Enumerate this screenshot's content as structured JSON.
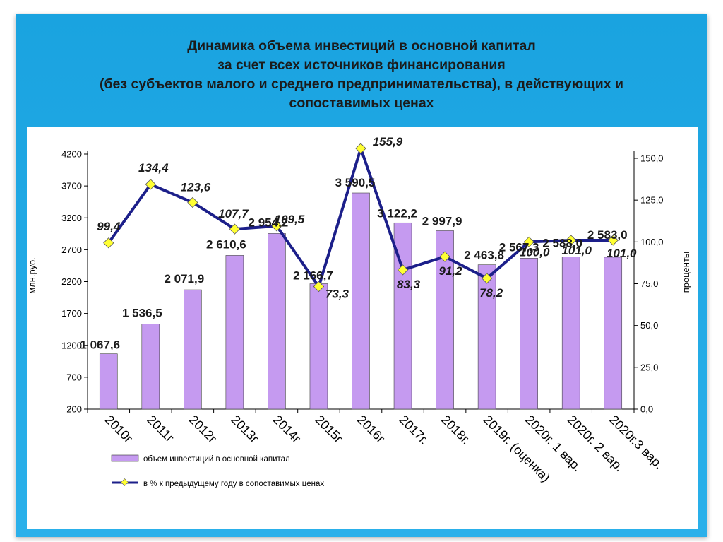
{
  "slide": {
    "title_lines": [
      "Динамика объема инвестиций в основной капитал",
      "за счет всех источников финансирования",
      "(без субъектов малого и среднего предпринимательства), в действующих и",
      "сопоставимых ценах"
    ],
    "colors": {
      "background": "#1aa3e0",
      "bar": "#c59af0",
      "line": "#1c1f8a",
      "marker": "#ffff33"
    }
  },
  "chart_data": {
    "type": "bar",
    "categories": [
      "2010г",
      "2011г",
      "2012г",
      "2013г",
      "2014г",
      "2015г",
      "2016г",
      "2017г.",
      "2018г.",
      "2019г. (оценка)",
      "2020г. 1 вар.",
      "2020г. 2 вар.",
      "2020г.3 вар."
    ],
    "series": [
      {
        "name": "объем инвестиций в основной капитал",
        "type": "bar",
        "axis": "left",
        "values": [
          1067.6,
          1536.5,
          2071.9,
          2610.6,
          2954.2,
          2166.7,
          3590.5,
          3122.2,
          2997.9,
          2463.8,
          2567.3,
          2588.0,
          2583.0
        ],
        "labels": [
          "1 067,6",
          "1 536,5",
          "2 071,9",
          "2 610,6",
          "2 954,2",
          "2 166,7",
          "3 590,5",
          "3 122,2",
          "2 997,9",
          "2 463,8",
          "2 567,3",
          "2 588,0",
          "2 583,0"
        ]
      },
      {
        "name": "в % к предыдущему году в сопоставимых ценах",
        "type": "line",
        "axis": "right",
        "values": [
          99.4,
          134.4,
          123.6,
          107.7,
          109.5,
          73.3,
          155.9,
          83.3,
          91.2,
          78.2,
          100.0,
          101.0,
          101.0
        ],
        "labels": [
          "99,4",
          "134,4",
          "123,6",
          "107,7",
          "109,5",
          "73,3",
          "155,9",
          "83,3",
          "91,2",
          "78,2",
          "100,0",
          "101,0",
          "101,0"
        ]
      }
    ],
    "ylabel": "млн.руо.",
    "y2label": "проценты",
    "ylim": [
      200,
      4200
    ],
    "yticks": [
      "4200",
      "3700",
      "3200",
      "2700",
      "2200",
      "1700",
      "1200",
      "700",
      "200"
    ],
    "y2lim": [
      0,
      150
    ],
    "y2ticks": [
      "150,0",
      "125,0",
      "100,0",
      "75,0",
      "50,0",
      "25,0",
      "0,0"
    ],
    "legend_position": "bottom-left",
    "grid": false
  }
}
